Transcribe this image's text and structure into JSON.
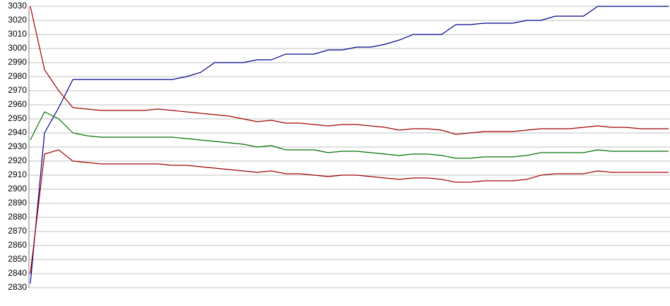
{
  "chart_data": {
    "type": "line",
    "categories": [
      null,
      null,
      null,
      null,
      null,
      null,
      null,
      null,
      null,
      null,
      null,
      null,
      null,
      null,
      null,
      null,
      null,
      null,
      null,
      null,
      null,
      null,
      null,
      null,
      null,
      null,
      null,
      null,
      null,
      null,
      null,
      null,
      null,
      null,
      null,
      null,
      null,
      null,
      null,
      null,
      null,
      null,
      null,
      null,
      null,
      null
    ],
    "series": [
      {
        "color": "#00008b",
        "values": [
          2833,
          2940,
          2958,
          2978,
          2978,
          2978,
          2978,
          2978,
          2978,
          2978,
          2978,
          2980,
          2983,
          2990,
          2990,
          2990,
          2992,
          2992,
          2996,
          2996,
          2996,
          2999,
          2999,
          3001,
          3001,
          3003,
          3006,
          3010,
          3010,
          3010,
          3017,
          3017,
          3018,
          3018,
          3018,
          3020,
          3020,
          3023,
          3023,
          3023,
          3030,
          3030,
          3030,
          3030,
          3030,
          3030
        ]
      },
      {
        "color": "#a00000",
        "values": [
          3030,
          2985,
          2970,
          2958,
          2957,
          2956,
          2956,
          2956,
          2956,
          2957,
          2956,
          2955,
          2954,
          2953,
          2952,
          2950,
          2948,
          2949,
          2947,
          2947,
          2946,
          2945,
          2946,
          2946,
          2945,
          2944,
          2942,
          2943,
          2943,
          2942,
          2939,
          2940,
          2941,
          2941,
          2941,
          2942,
          2943,
          2943,
          2943,
          2944,
          2945,
          2944,
          2944,
          2943,
          2943,
          2943
        ]
      },
      {
        "color": "#007000",
        "values": [
          2935,
          2955,
          2950,
          2940,
          2938,
          2937,
          2937,
          2937,
          2937,
          2937,
          2937,
          2936,
          2935,
          2934,
          2933,
          2932,
          2930,
          2931,
          2928,
          2928,
          2928,
          2926,
          2927,
          2927,
          2926,
          2925,
          2924,
          2925,
          2925,
          2924,
          2922,
          2922,
          2923,
          2923,
          2923,
          2924,
          2926,
          2926,
          2926,
          2926,
          2928,
          2927,
          2927,
          2927,
          2927,
          2927
        ]
      },
      {
        "color": "#a00000",
        "values": [
          2840,
          2925,
          2928,
          2920,
          2919,
          2918,
          2918,
          2918,
          2918,
          2918,
          2917,
          2917,
          2916,
          2915,
          2914,
          2913,
          2912,
          2913,
          2911,
          2911,
          2910,
          2909,
          2910,
          2910,
          2909,
          2908,
          2907,
          2908,
          2908,
          2907,
          2905,
          2905,
          2906,
          2906,
          2906,
          2907,
          2910,
          2911,
          2911,
          2911,
          2913,
          2912,
          2912,
          2912,
          2912,
          2912
        ]
      }
    ],
    "ylim": [
      2830,
      3030
    ],
    "yticks": [
      2830,
      2840,
      2850,
      2860,
      2870,
      2880,
      2890,
      2900,
      2910,
      2920,
      2930,
      2940,
      2950,
      2960,
      2970,
      2980,
      2990,
      3000,
      3010,
      3020,
      3030
    ],
    "grid": true
  }
}
